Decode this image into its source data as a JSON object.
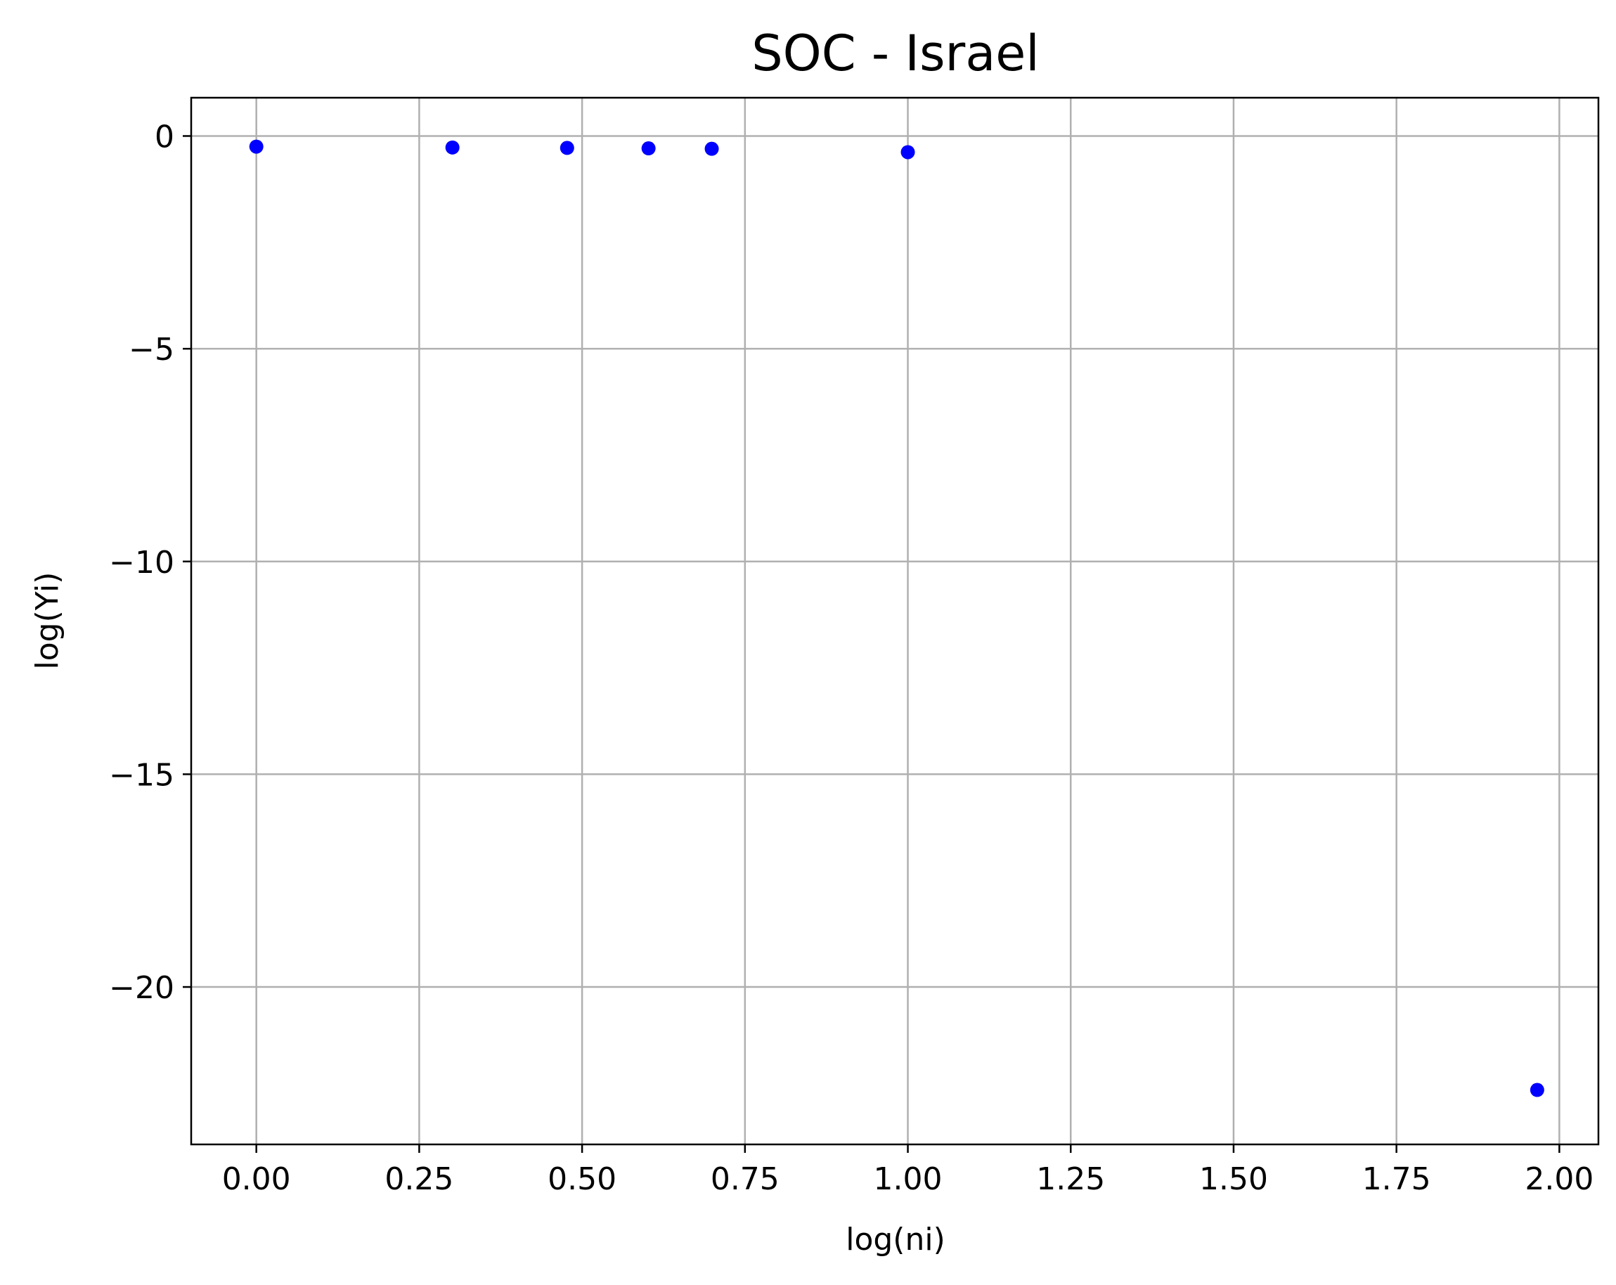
{
  "chart_data": {
    "type": "scatter",
    "title": "SOC - Israel",
    "xlabel": "log(ni)",
    "ylabel": "log(Yi)",
    "xlim": [
      -0.1,
      2.06
    ],
    "ylim": [
      -23.7,
      0.9
    ],
    "xticks": [
      0.0,
      0.25,
      0.5,
      0.75,
      1.0,
      1.25,
      1.5,
      1.75,
      2.0
    ],
    "xtick_labels": [
      "0.00",
      "0.25",
      "0.50",
      "0.75",
      "1.00",
      "1.25",
      "1.50",
      "1.75",
      "2.00"
    ],
    "yticks": [
      0,
      -5,
      -10,
      -15,
      -20
    ],
    "ytick_labels": [
      "0",
      "−5",
      "−10",
      "−15",
      "−20"
    ],
    "grid": true,
    "marker_color": "#0000ff",
    "series": [
      {
        "x": [
          0.0,
          0.301,
          0.477,
          0.602,
          0.699,
          1.0,
          1.966
        ],
        "y": [
          -0.25,
          -0.27,
          -0.28,
          -0.29,
          -0.3,
          -0.38,
          -22.42
        ]
      }
    ]
  }
}
